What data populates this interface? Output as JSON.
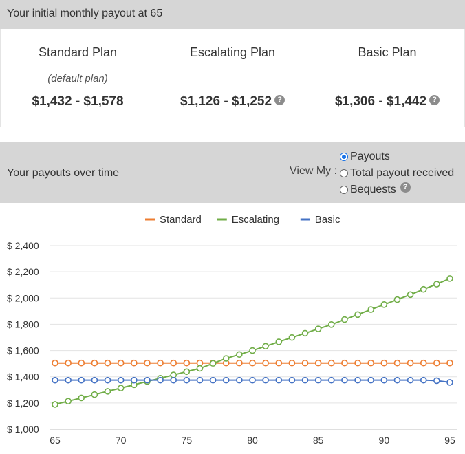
{
  "header": {
    "title": "Your initial monthly payout at 65"
  },
  "plans": [
    {
      "name": "Standard Plan",
      "note": "(default plan)",
      "range": "$1,432 - $1,578",
      "help": ""
    },
    {
      "name": "Escalating Plan",
      "note": "",
      "range": "$1,126 - $1,252",
      "help": "?"
    },
    {
      "name": "Basic Plan",
      "note": "",
      "range": "$1,306 - $1,442",
      "help": "?"
    }
  ],
  "over_time": {
    "title": "Your payouts over time",
    "view_label": "View My :",
    "options": [
      {
        "label": "Payouts",
        "checked": true
      },
      {
        "label": "Total payout received",
        "checked": false
      },
      {
        "label": "Bequests",
        "checked": false
      }
    ],
    "bequests_help": "?"
  },
  "colors": {
    "standard": "#ed7d31",
    "escalating": "#70ad47",
    "basic": "#4472c4"
  },
  "chart_data": {
    "type": "line",
    "x": [
      65,
      66,
      67,
      68,
      69,
      70,
      71,
      72,
      73,
      74,
      75,
      76,
      77,
      78,
      79,
      80,
      81,
      82,
      83,
      84,
      85,
      86,
      87,
      88,
      89,
      90,
      91,
      92,
      93,
      94,
      95
    ],
    "xticks": [
      "65",
      "70",
      "75",
      "80",
      "85",
      "90",
      "95"
    ],
    "yticks": [
      "$ 1,000",
      "$ 1,200",
      "$ 1,400",
      "$ 1,600",
      "$ 1,800",
      "$ 2,000",
      "$ 2,200",
      "$ 2,400"
    ],
    "ylim": [
      1000,
      2400
    ],
    "grid": true,
    "legend": "top",
    "series": [
      {
        "name": "Standard",
        "color": "#ed7d31",
        "values": [
          1505,
          1505,
          1505,
          1505,
          1505,
          1505,
          1505,
          1505,
          1505,
          1505,
          1505,
          1505,
          1505,
          1505,
          1505,
          1505,
          1505,
          1505,
          1505,
          1505,
          1505,
          1505,
          1505,
          1505,
          1505,
          1505,
          1505,
          1505,
          1505,
          1505,
          1505
        ]
      },
      {
        "name": "Escalating",
        "color": "#70ad47",
        "values": [
          1189,
          1214,
          1239,
          1264,
          1289,
          1314,
          1339,
          1364,
          1389,
          1414,
          1439,
          1464,
          1502,
          1540,
          1570,
          1600,
          1633,
          1666,
          1699,
          1732,
          1765,
          1798,
          1836,
          1874,
          1912,
          1950,
          1988,
          2026,
          2066,
          2106,
          2149
        ]
      },
      {
        "name": "Basic",
        "color": "#4472c4",
        "values": [
          1374,
          1374,
          1374,
          1374,
          1374,
          1374,
          1374,
          1374,
          1374,
          1374,
          1374,
          1374,
          1374,
          1374,
          1374,
          1374,
          1374,
          1374,
          1374,
          1374,
          1374,
          1374,
          1374,
          1374,
          1374,
          1374,
          1374,
          1374,
          1374,
          1370,
          1357
        ]
      }
    ]
  }
}
